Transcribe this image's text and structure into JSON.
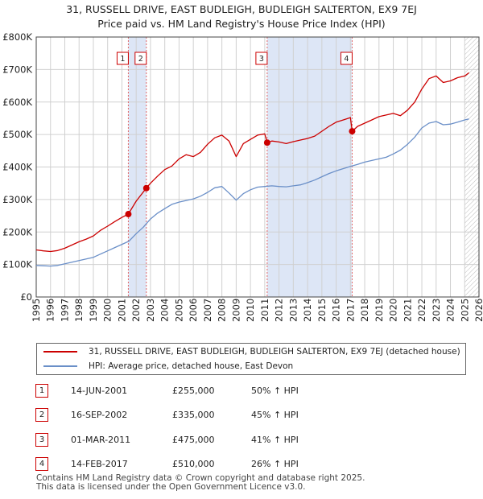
{
  "title_line1": "31, RUSSELL DRIVE, EAST BUDLEIGH, BUDLEIGH SALTERTON, EX9 7EJ",
  "title_line2": "Price paid vs. HM Land Registry's House Price Index (HPI)",
  "colors": {
    "property": "#cc0000",
    "hpi": "#6a8fc8",
    "shade": "#dde6f6",
    "grid": "#d0d0d0"
  },
  "chart_data": {
    "type": "line",
    "xlim": [
      1995,
      2026
    ],
    "ylim": [
      0,
      800000
    ],
    "x_ticks": [
      "1995",
      "1996",
      "1997",
      "1998",
      "1999",
      "2000",
      "2001",
      "2002",
      "2003",
      "2004",
      "2005",
      "2006",
      "2007",
      "2008",
      "2009",
      "2010",
      "2011",
      "2012",
      "2013",
      "2014",
      "2015",
      "2016",
      "2017",
      "2018",
      "2019",
      "2020",
      "2021",
      "2022",
      "2023",
      "2024",
      "2025",
      "2026"
    ],
    "y_ticks": [
      {
        "value": 0,
        "label": "£0"
      },
      {
        "value": 100000,
        "label": "£100K"
      },
      {
        "value": 200000,
        "label": "£200K"
      },
      {
        "value": 300000,
        "label": "£300K"
      },
      {
        "value": 400000,
        "label": "£400K"
      },
      {
        "value": 500000,
        "label": "£500K"
      },
      {
        "value": 600000,
        "label": "£600K"
      },
      {
        "value": 700000,
        "label": "£700K"
      },
      {
        "value": 800000,
        "label": "£800K"
      }
    ],
    "shaded_ranges": [
      [
        2001.45,
        2002.71
      ],
      [
        2011.17,
        2017.12
      ]
    ],
    "forecast_start": 2025.0,
    "series": [
      {
        "name": "31, RUSSELL DRIVE, EAST BUDLEIGH, BUDLEIGH SALTERTON, EX9 7EJ (detached house)",
        "x": [
          1995.0,
          1995.5,
          1996.0,
          1996.5,
          1997.0,
          1997.5,
          1998.0,
          1998.5,
          1999.0,
          1999.5,
          2000.0,
          2000.5,
          2001.0,
          2001.45,
          2002.0,
          2002.71,
          2003.0,
          2003.5,
          2004.0,
          2004.5,
          2005.0,
          2005.5,
          2006.0,
          2006.5,
          2007.0,
          2007.5,
          2008.0,
          2008.5,
          2009.0,
          2009.5,
          2010.0,
          2010.5,
          2011.0,
          2011.17,
          2011.5,
          2012.0,
          2012.5,
          2013.0,
          2013.5,
          2014.0,
          2014.5,
          2015.0,
          2015.5,
          2016.0,
          2016.5,
          2017.0,
          2017.12,
          2017.5,
          2018.0,
          2018.5,
          2019.0,
          2019.5,
          2020.0,
          2020.5,
          2021.0,
          2021.5,
          2022.0,
          2022.5,
          2023.0,
          2023.5,
          2024.0,
          2024.5,
          2025.0,
          2025.3
        ],
        "y": [
          145000,
          142000,
          140000,
          143000,
          150000,
          160000,
          170000,
          178000,
          188000,
          205000,
          218000,
          232000,
          245000,
          255000,
          295000,
          335000,
          350000,
          372000,
          392000,
          403000,
          425000,
          438000,
          432000,
          445000,
          470000,
          490000,
          498000,
          480000,
          432000,
          472000,
          485000,
          498000,
          502000,
          475000,
          480000,
          477000,
          472000,
          478000,
          483000,
          488000,
          495000,
          510000,
          525000,
          538000,
          545000,
          552000,
          510000,
          525000,
          535000,
          545000,
          555000,
          560000,
          565000,
          558000,
          575000,
          600000,
          640000,
          672000,
          680000,
          660000,
          665000,
          675000,
          680000,
          690000
        ]
      },
      {
        "name": "HPI: Average price, detached house, East Devon",
        "x": [
          1995.0,
          1995.5,
          1996.0,
          1996.5,
          1997.0,
          1997.5,
          1998.0,
          1998.5,
          1999.0,
          1999.5,
          2000.0,
          2000.5,
          2001.0,
          2001.5,
          2002.0,
          2002.5,
          2003.0,
          2003.5,
          2004.0,
          2004.5,
          2005.0,
          2005.5,
          2006.0,
          2006.5,
          2007.0,
          2007.5,
          2008.0,
          2008.5,
          2009.0,
          2009.5,
          2010.0,
          2010.5,
          2011.0,
          2011.5,
          2012.0,
          2012.5,
          2013.0,
          2013.5,
          2014.0,
          2014.5,
          2015.0,
          2015.5,
          2016.0,
          2016.5,
          2017.0,
          2017.5,
          2018.0,
          2018.5,
          2019.0,
          2019.5,
          2020.0,
          2020.5,
          2021.0,
          2021.5,
          2022.0,
          2022.5,
          2023.0,
          2023.5,
          2024.0,
          2024.5,
          2025.0,
          2025.3
        ],
        "y": [
          97000,
          96000,
          95000,
          97000,
          102000,
          107000,
          112000,
          117000,
          122000,
          132000,
          142000,
          152000,
          162000,
          172000,
          195000,
          215000,
          240000,
          258000,
          272000,
          285000,
          292000,
          297000,
          302000,
          310000,
          322000,
          336000,
          340000,
          320000,
          298000,
          318000,
          330000,
          338000,
          340000,
          342000,
          340000,
          339000,
          342000,
          345000,
          352000,
          360000,
          370000,
          380000,
          388000,
          395000,
          402000,
          408000,
          415000,
          420000,
          425000,
          430000,
          440000,
          452000,
          470000,
          492000,
          520000,
          535000,
          540000,
          530000,
          532000,
          538000,
          545000,
          548000
        ]
      }
    ],
    "sales": [
      {
        "n": "1",
        "x": 2001.45,
        "y": 255000
      },
      {
        "n": "2",
        "x": 2002.71,
        "y": 335000
      },
      {
        "n": "3",
        "x": 2011.17,
        "y": 475000
      },
      {
        "n": "4",
        "x": 2017.12,
        "y": 510000
      }
    ]
  },
  "legend": {
    "property": "31, RUSSELL DRIVE, EAST BUDLEIGH, BUDLEIGH SALTERTON, EX9 7EJ (detached house)",
    "hpi": "HPI: Average price, detached house, East Devon"
  },
  "sales_table": [
    {
      "n": "1",
      "date": "14-JUN-2001",
      "price": "£255,000",
      "hpi": "50% ↑ HPI"
    },
    {
      "n": "2",
      "date": "16-SEP-2002",
      "price": "£335,000",
      "hpi": "45% ↑ HPI"
    },
    {
      "n": "3",
      "date": "01-MAR-2011",
      "price": "£475,000",
      "hpi": "41% ↑ HPI"
    },
    {
      "n": "4",
      "date": "14-FEB-2017",
      "price": "£510,000",
      "hpi": "26% ↑ HPI"
    }
  ],
  "footer_line1": "Contains HM Land Registry data © Crown copyright and database right 2025.",
  "footer_line2": "This data is licensed under the Open Government Licence v3.0."
}
